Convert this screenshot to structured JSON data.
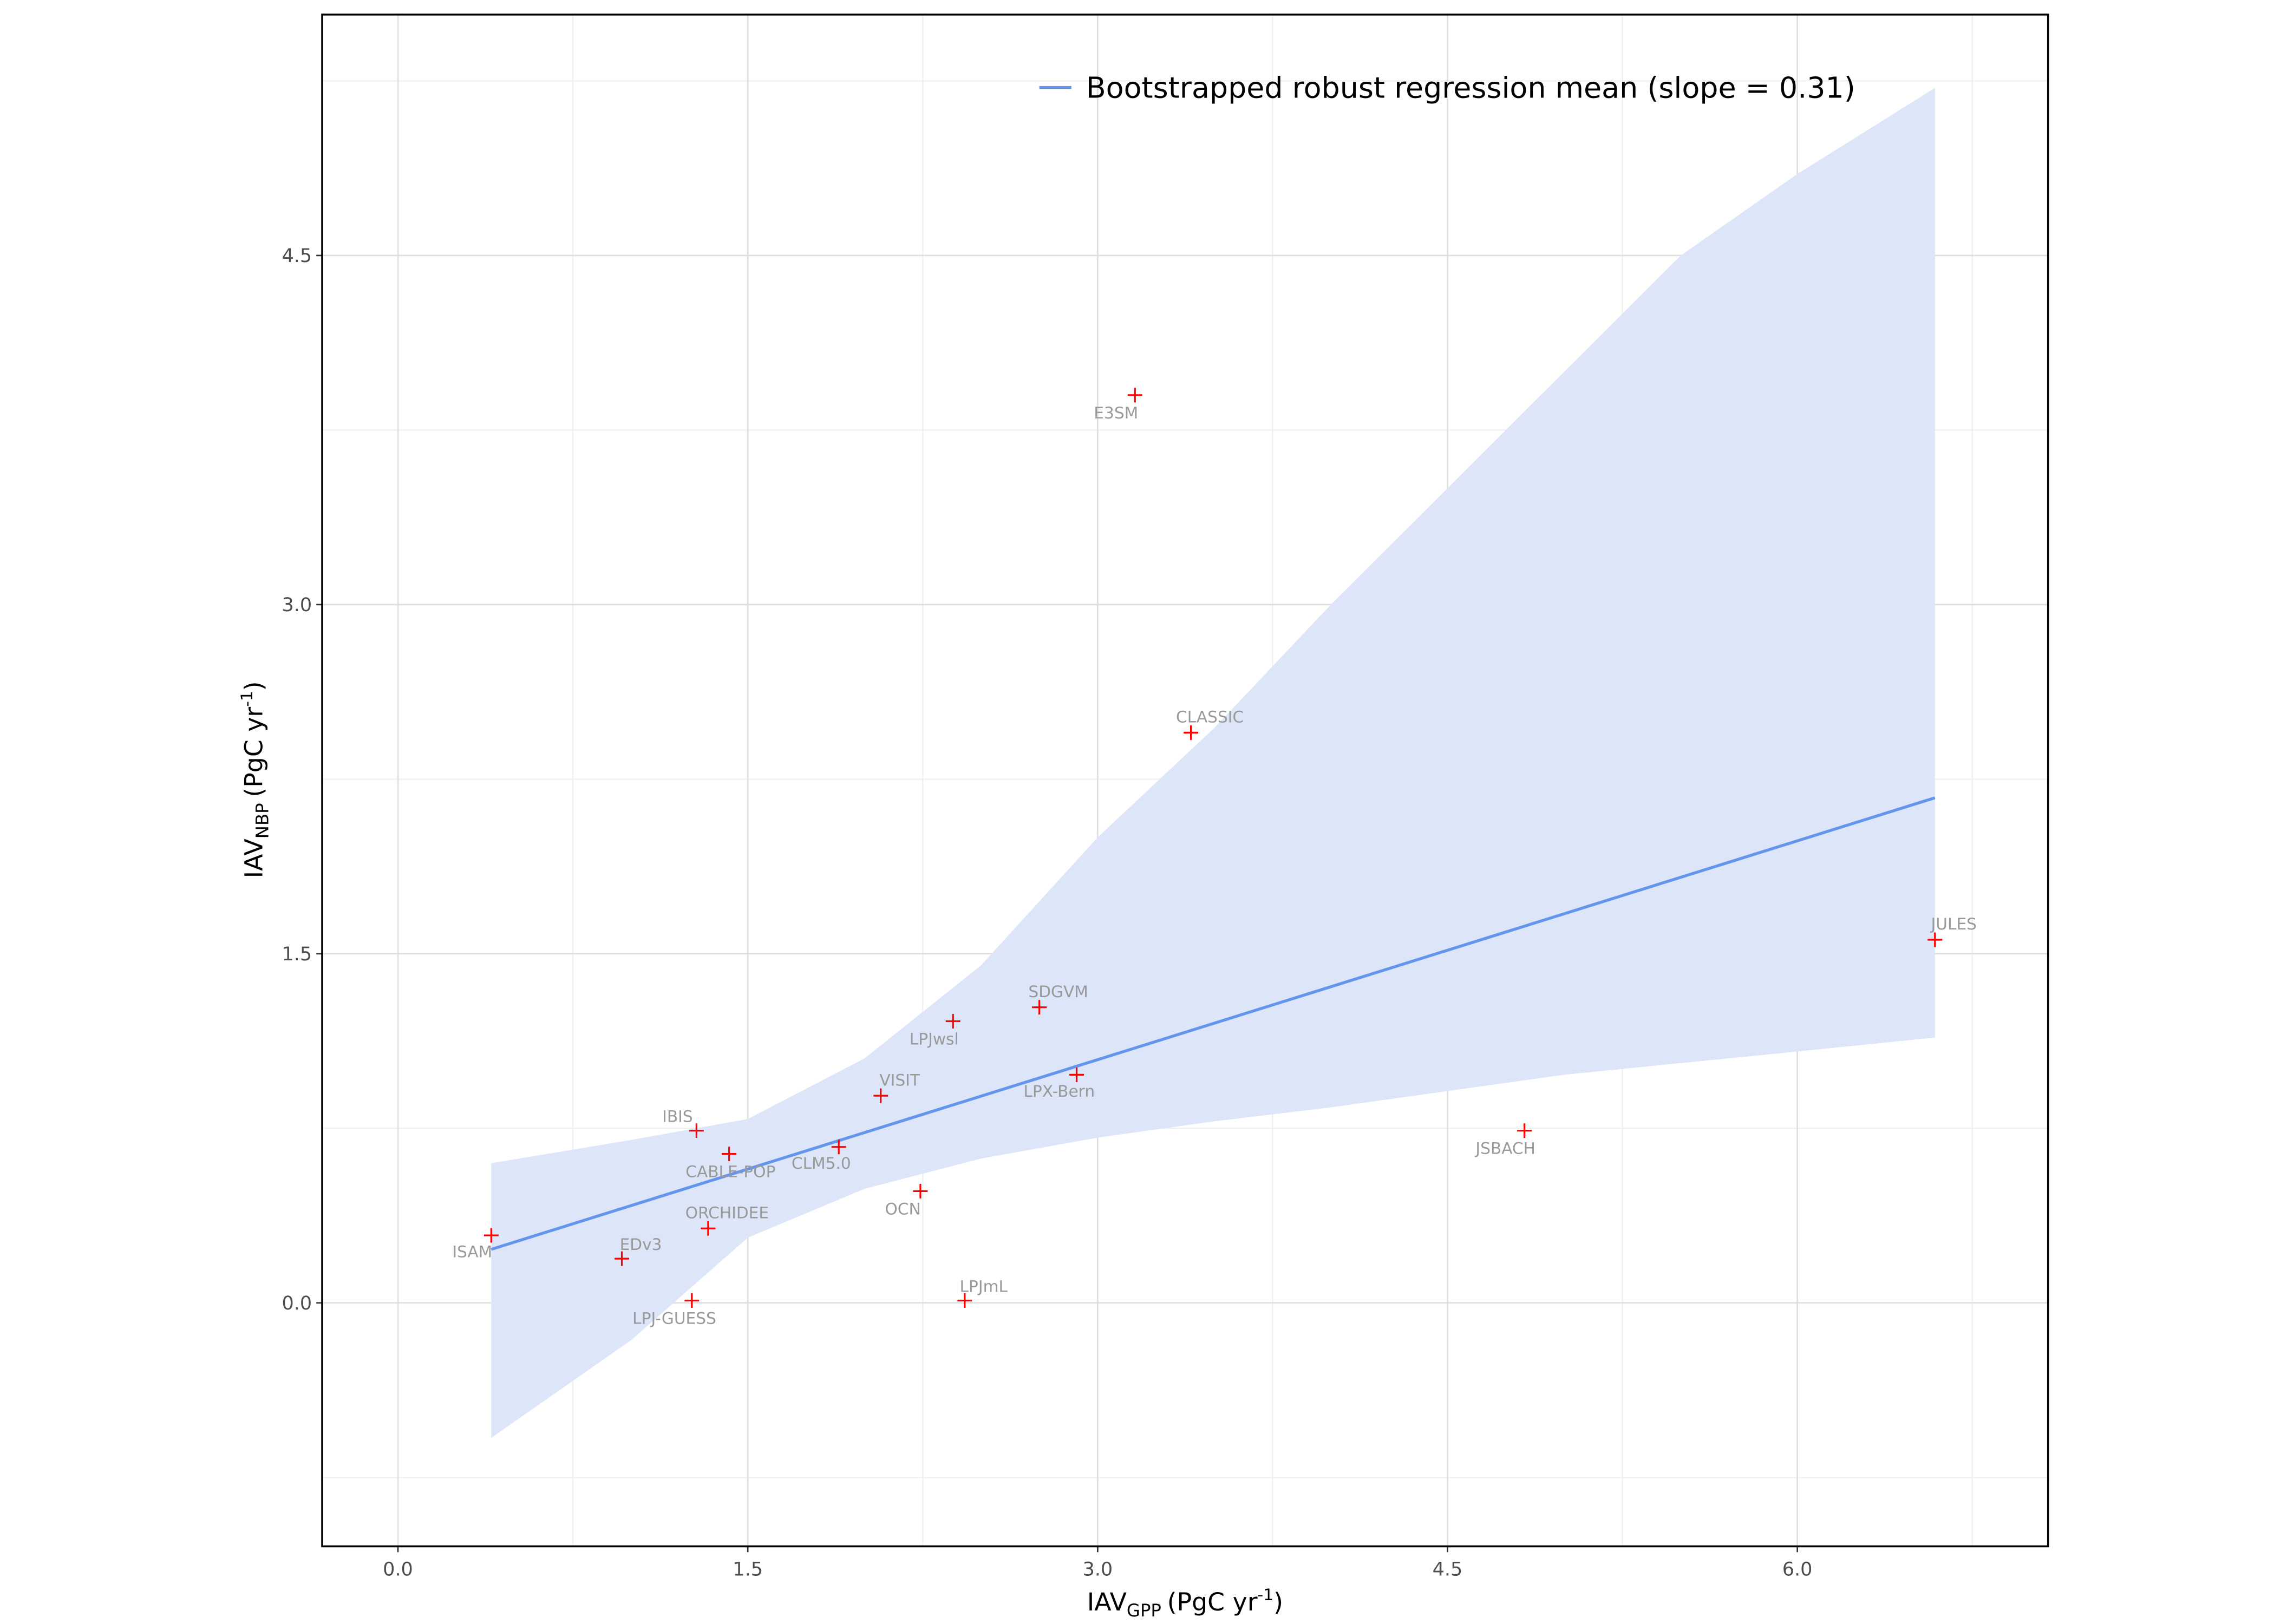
{
  "chart_data": {
    "type": "scatter",
    "x_label": {
      "main": "IAV",
      "sub": "GPP",
      "unit": "(PgC yr",
      "sup": "-1",
      "close": ")"
    },
    "y_label": {
      "main": "IAV",
      "sub": "NBP",
      "unit": "(PgC yr",
      "sup": "-1",
      "close": ")"
    },
    "xlim": [
      -0.325,
      7.075
    ],
    "ylim": [
      -1.046,
      5.535
    ],
    "xticks": [
      {
        "value": 0,
        "label": "0.0"
      },
      {
        "value": 1.5,
        "label": "1.5"
      },
      {
        "value": 3,
        "label": "3.0"
      },
      {
        "value": 4.5,
        "label": "4.5"
      },
      {
        "value": 6,
        "label": "6.0"
      }
    ],
    "yticks": [
      {
        "value": 0,
        "label": "0.0"
      },
      {
        "value": 1.5,
        "label": "1.5"
      },
      {
        "value": 3,
        "label": "3.0"
      },
      {
        "value": 4.5,
        "label": "4.5"
      }
    ],
    "xminor": [
      0.75,
      2.25,
      3.75,
      5.25,
      6.75
    ],
    "yminor": [
      -0.75,
      0.75,
      2.25,
      3.75,
      5.25
    ],
    "grid": true,
    "points": {
      "color": "#ff0000",
      "labels": [
        "ISAM",
        "EDv3",
        "LPJ-GUESS",
        "ORCHIDEE",
        "IBIS",
        "CABLE-POP",
        "CLM5.0",
        "VISIT",
        "OCN",
        "LPJwsl",
        "LPJmL",
        "SDGVM",
        "LPX-Bern",
        "E3SM",
        "CLASSIC",
        "JSBACH",
        "JULES"
      ],
      "x": [
        0.4,
        0.96,
        1.26,
        1.33,
        1.28,
        1.42,
        1.89,
        2.07,
        2.24,
        2.38,
        2.43,
        2.75,
        2.91,
        3.16,
        3.4,
        4.83,
        6.59
      ],
      "y": [
        0.29,
        0.19,
        0.01,
        0.32,
        0.74,
        0.64,
        0.67,
        0.89,
        0.48,
        1.21,
        0.01,
        1.27,
        0.98,
        3.9,
        2.45,
        0.74,
        1.56
      ]
    },
    "regression": {
      "name": "Bootstrapped robust regression mean (slope = 0.31)",
      "color": "#6495ed",
      "x": [
        0.4,
        6.59
      ],
      "y": [
        0.23,
        2.17
      ]
    },
    "band": {
      "color": "#dce6f8",
      "x": [
        0.4,
        1.0,
        1.5,
        2.0,
        2.5,
        3.0,
        3.5,
        4.0,
        4.5,
        5.0,
        5.5,
        6.0,
        6.59
      ],
      "upper": [
        0.6,
        0.7,
        0.79,
        1.05,
        1.45,
        2.0,
        2.47,
        3.0,
        3.5,
        4.0,
        4.5,
        4.85,
        5.22
      ],
      "lower": [
        -0.58,
        -0.16,
        0.28,
        0.49,
        0.62,
        0.71,
        0.78,
        0.84,
        0.91,
        0.98,
        1.03,
        1.08,
        1.14
      ]
    },
    "legend": "top-right"
  }
}
